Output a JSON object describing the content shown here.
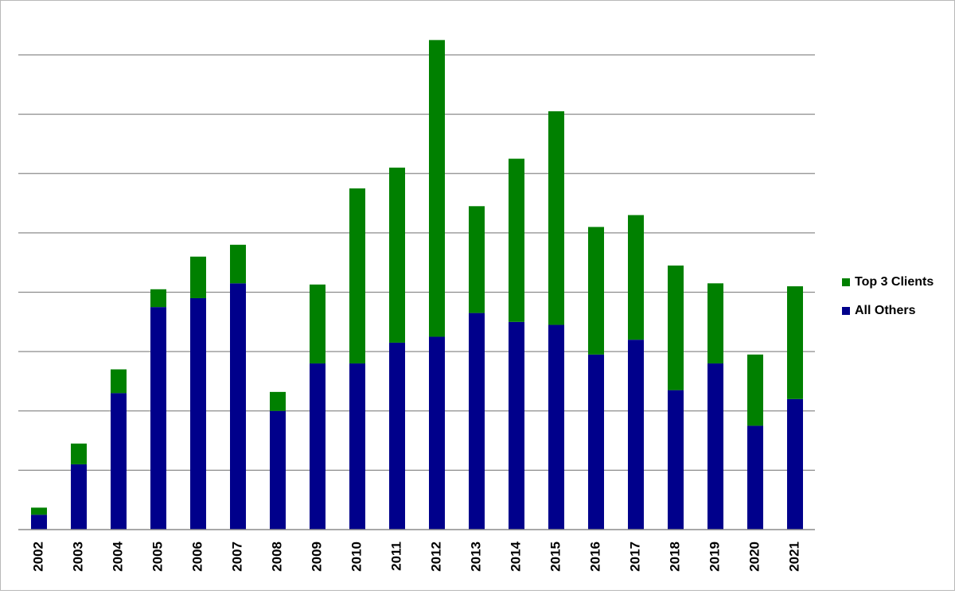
{
  "chart_data": {
    "type": "bar",
    "stacked": true,
    "categories": [
      "2002",
      "2003",
      "2004",
      "2005",
      "2006",
      "2007",
      "2008",
      "2009",
      "2010",
      "2011",
      "2012",
      "2013",
      "2014",
      "2015",
      "2016",
      "2017",
      "2018",
      "2019",
      "2020",
      "2021"
    ],
    "series": [
      {
        "name": "All Others",
        "color": "#00008b",
        "values": [
          2.5,
          11,
          23,
          37.5,
          39,
          41.5,
          20,
          28,
          28,
          31.5,
          32.5,
          36.5,
          35,
          34.5,
          29.5,
          32,
          23.5,
          28,
          17.5,
          22
        ]
      },
      {
        "name": "Top 3 Clients",
        "color": "#008000",
        "values": [
          1.2,
          3.5,
          4,
          3,
          7,
          6.5,
          3.2,
          13.3,
          29.5,
          29.5,
          50,
          18,
          27.5,
          36,
          21.5,
          21,
          21,
          13.5,
          12,
          19
        ]
      }
    ],
    "ylim": [
      0,
      80
    ],
    "ytick_step": 10,
    "y_tick_labels_shown": false,
    "grid": true,
    "legend_position": "right",
    "legend_order": [
      "Top 3 Clients",
      "All Others"
    ]
  }
}
